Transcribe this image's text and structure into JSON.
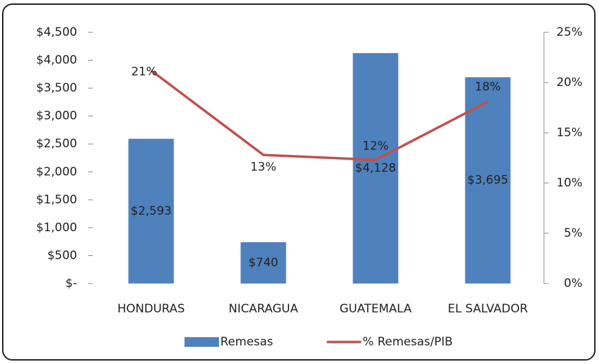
{
  "chart_data": {
    "type": "bar-line",
    "categories": [
      "HONDURAS",
      "NICARAGUA",
      "GUATEMALA",
      "EL SALVADOR"
    ],
    "series": [
      {
        "name": "Remesas",
        "type": "bar",
        "color": "#4f81bd",
        "values": [
          2593,
          740,
          4128,
          3695
        ],
        "value_labels": [
          "$2,593",
          "$740",
          "$4,128",
          "$3,695"
        ]
      },
      {
        "name": "% Remesas/PIB",
        "type": "line",
        "axis": "y2",
        "color": "#c0504d",
        "values": [
          21.2,
          12.8,
          12.3,
          18.1
        ],
        "value_labels": [
          "21%",
          "13%",
          "12%",
          "18%"
        ]
      }
    ],
    "ylim": [
      0,
      4500
    ],
    "yticks": [
      {
        "value": 0,
        "label": "$-"
      },
      {
        "value": 500,
        "label": "$500"
      },
      {
        "value": 1000,
        "label": "$1,000"
      },
      {
        "value": 1500,
        "label": "$1,500"
      },
      {
        "value": 2000,
        "label": "$2,000"
      },
      {
        "value": 2500,
        "label": "$2,500"
      },
      {
        "value": 3000,
        "label": "$3,000"
      },
      {
        "value": 3500,
        "label": "$3,500"
      },
      {
        "value": 4000,
        "label": "$4,000"
      },
      {
        "value": 4500,
        "label": "$4,500"
      }
    ],
    "y2lim": [
      0,
      25
    ],
    "y2ticks": [
      {
        "value": 0,
        "label": "0%"
      },
      {
        "value": 5,
        "label": "5%"
      },
      {
        "value": 10,
        "label": "10%"
      },
      {
        "value": 15,
        "label": "15%"
      },
      {
        "value": 20,
        "label": "20%"
      },
      {
        "value": 25,
        "label": "25%"
      }
    ],
    "legend": "bottom"
  }
}
